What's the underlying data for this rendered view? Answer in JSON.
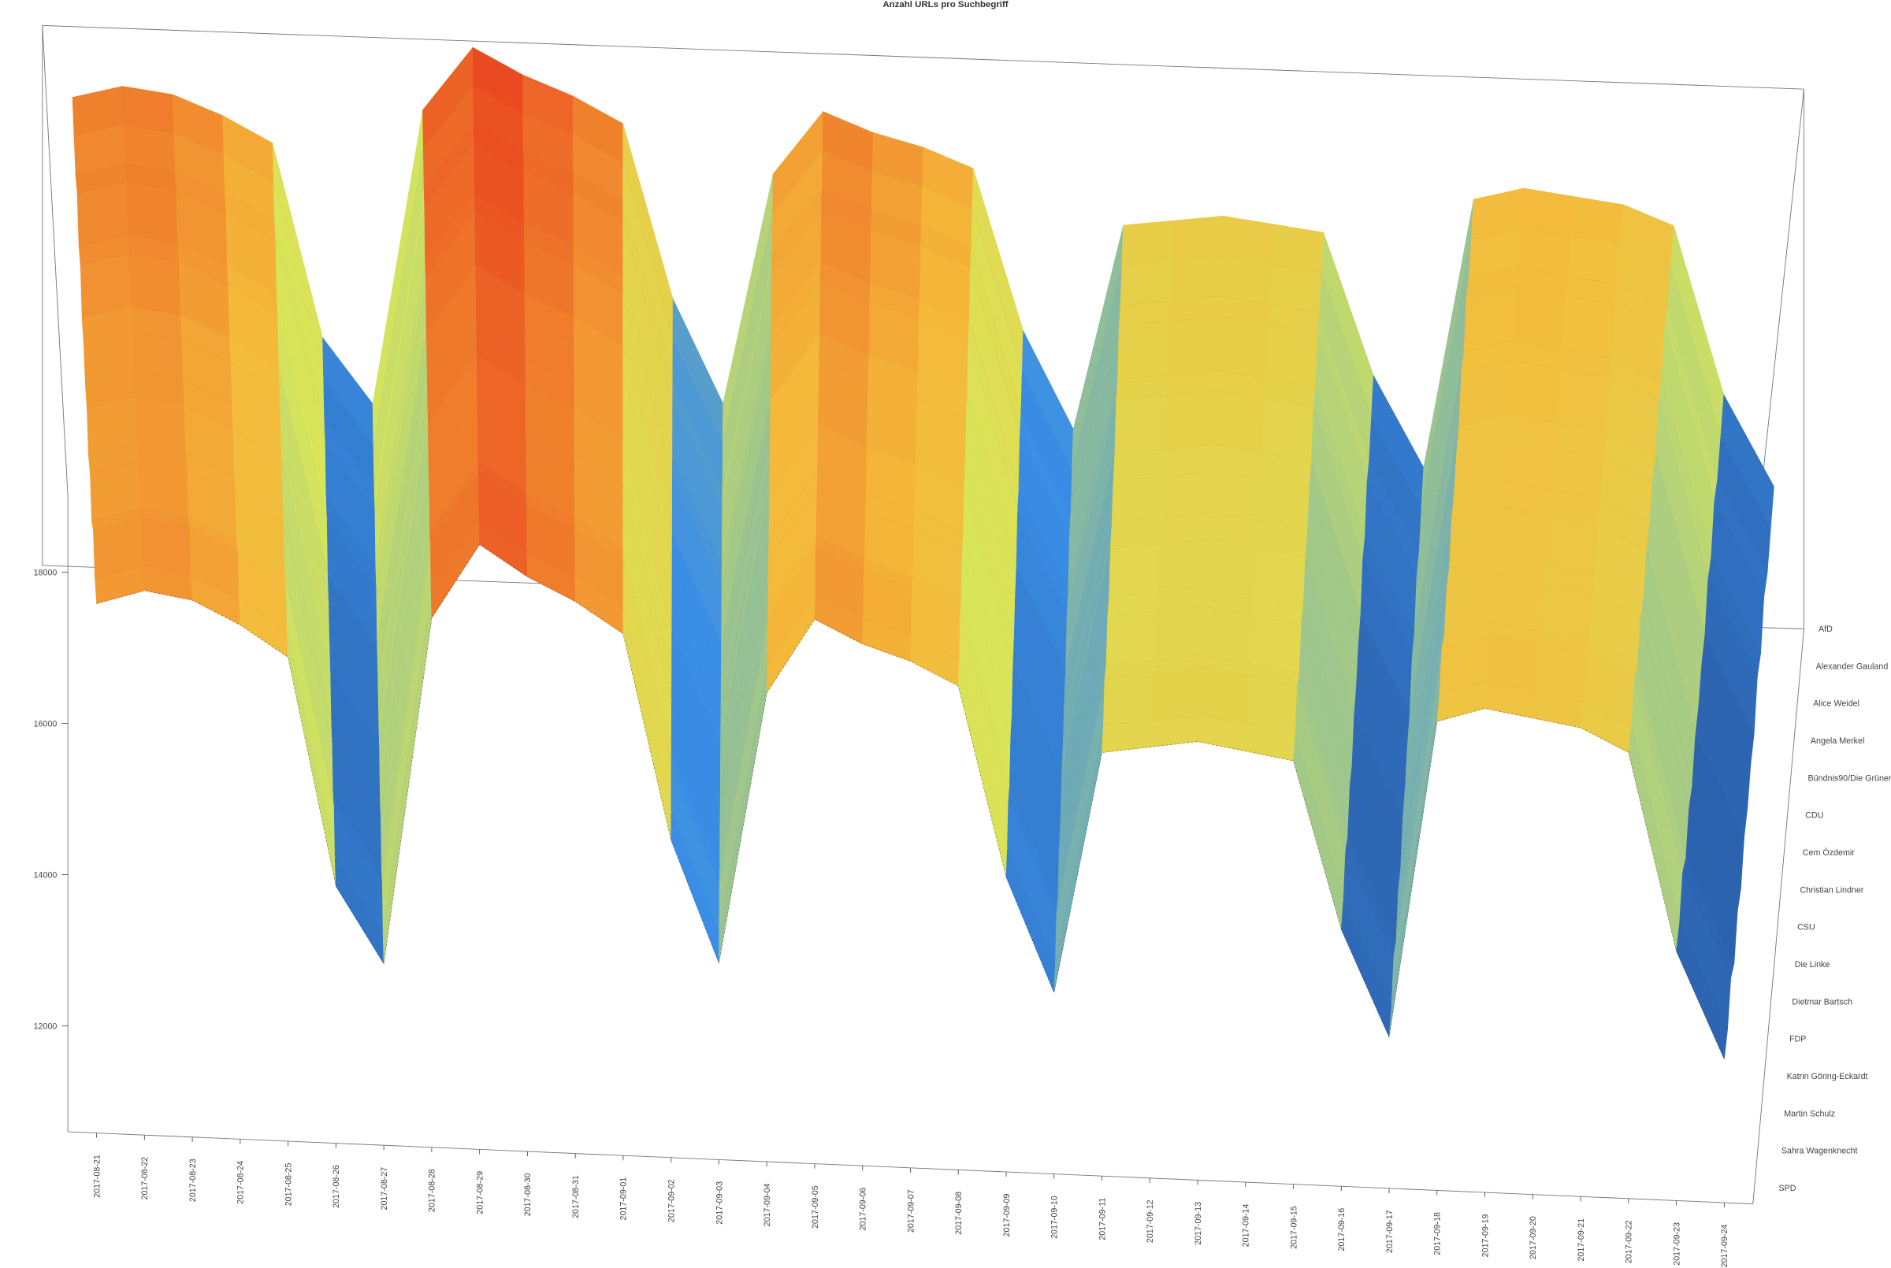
{
  "chart_data": {
    "type": "surface",
    "title": "Anzahl URLs pro Suchbegriff",
    "x": [
      "2017-08-21",
      "2017-08-22",
      "2017-08-23",
      "2017-08-24",
      "2017-08-25",
      "2017-08-26",
      "2017-08-27",
      "2017-08-28",
      "2017-08-29",
      "2017-08-30",
      "2017-08-31",
      "2017-09-01",
      "2017-09-02",
      "2017-09-03",
      "2017-09-04",
      "2017-09-05",
      "2017-09-06",
      "2017-09-07",
      "2017-09-08",
      "2017-09-09",
      "2017-09-10",
      "2017-09-11",
      "2017-09-12",
      "2017-09-13",
      "2017-09-14",
      "2017-09-15",
      "2017-09-16",
      "2017-09-17",
      "2017-09-18",
      "2017-09-19",
      "2017-09-20",
      "2017-09-21",
      "2017-09-22",
      "2017-09-23",
      "2017-09-24"
    ],
    "zlim": [
      10600,
      19000
    ],
    "zticks": [
      12000,
      14000,
      16000,
      18000
    ],
    "colors": [
      "#1f3a7a",
      "#3a8ee6",
      "#d8e65a",
      "#f5b93a",
      "#e8361c"
    ],
    "series": [
      {
        "name": "AfD",
        "values": [
          17900,
          18100,
          18000,
          17700,
          17300,
          14300,
          13300,
          17900,
          18900,
          18500,
          18200,
          17800,
          15100,
          13500,
          17100,
          18100,
          17800,
          17600,
          17300,
          14800,
          13300,
          16500,
          16600,
          16700,
          16600,
          16500,
          14300,
          12900,
          17100,
          17300,
          17200,
          17100,
          16800,
          14200,
          12800
        ]
      },
      {
        "name": "Alexander Gauland",
        "values": [
          17800,
          18000,
          17900,
          17600,
          17200,
          14200,
          13200,
          17800,
          18800,
          18400,
          18100,
          17700,
          15000,
          13400,
          17000,
          18000,
          17700,
          17500,
          17200,
          14700,
          13200,
          16400,
          16500,
          16600,
          16500,
          16400,
          14200,
          12800,
          17000,
          17200,
          17100,
          17000,
          16700,
          14100,
          12700
        ]
      },
      {
        "name": "Alice Weidel",
        "values": [
          17700,
          17900,
          17800,
          17500,
          17100,
          14100,
          13100,
          17700,
          18700,
          18300,
          18000,
          17600,
          14900,
          13300,
          16900,
          17900,
          17600,
          17400,
          17100,
          14600,
          13100,
          16300,
          16400,
          16500,
          16400,
          16300,
          14100,
          12700,
          16900,
          17100,
          17000,
          16900,
          16600,
          14000,
          12600
        ]
      },
      {
        "name": "Angela Merkel",
        "values": [
          17900,
          18100,
          18000,
          17700,
          17300,
          14300,
          13300,
          17900,
          18900,
          18500,
          18200,
          17800,
          15100,
          13500,
          17100,
          18100,
          17800,
          17600,
          17300,
          14800,
          13300,
          16500,
          16600,
          16700,
          16600,
          16500,
          14300,
          12900,
          17100,
          17300,
          17200,
          17100,
          16800,
          14200,
          12800
        ]
      },
      {
        "name": "Bündnis90/Die Grünen",
        "values": [
          17600,
          17800,
          17700,
          17400,
          17000,
          14000,
          13000,
          17600,
          18600,
          18200,
          17900,
          17500,
          14800,
          13200,
          16800,
          17800,
          17500,
          17300,
          17000,
          14500,
          13000,
          16200,
          16300,
          16400,
          16300,
          16200,
          14000,
          12600,
          16800,
          17000,
          16900,
          16800,
          16500,
          13900,
          12500
        ]
      },
      {
        "name": "CDU",
        "values": [
          17800,
          18000,
          17900,
          17600,
          17200,
          14200,
          13200,
          17800,
          18800,
          18400,
          18100,
          17700,
          15000,
          13400,
          17000,
          18000,
          17700,
          17500,
          17200,
          14700,
          13200,
          16400,
          16500,
          16600,
          16500,
          16400,
          14200,
          12800,
          17000,
          17200,
          17100,
          17000,
          16700,
          14100,
          12700
        ]
      },
      {
        "name": "Cem Özdemir",
        "values": [
          17500,
          17700,
          17600,
          17300,
          16900,
          13900,
          12900,
          17500,
          18500,
          18100,
          17800,
          17400,
          14700,
          13100,
          16700,
          17700,
          17400,
          17200,
          16900,
          14400,
          12900,
          16100,
          16200,
          16300,
          16200,
          16100,
          13900,
          12500,
          16700,
          16900,
          16800,
          16700,
          16400,
          13800,
          12400
        ]
      },
      {
        "name": "Christian Lindner",
        "values": [
          17600,
          17800,
          17700,
          17400,
          17000,
          14000,
          13000,
          17600,
          18600,
          18200,
          17900,
          17500,
          14800,
          13200,
          16800,
          17800,
          17500,
          17300,
          17000,
          14500,
          13000,
          16200,
          16300,
          16400,
          16300,
          16200,
          14000,
          12600,
          16800,
          17000,
          16900,
          16800,
          16500,
          13900,
          12500
        ]
      },
      {
        "name": "CSU",
        "values": [
          17500,
          17700,
          17600,
          17300,
          16900,
          13900,
          12900,
          17500,
          18500,
          18100,
          17800,
          17400,
          14700,
          13100,
          16700,
          17700,
          17400,
          17200,
          16900,
          14400,
          12900,
          16100,
          16200,
          16300,
          16200,
          16100,
          13900,
          12500,
          16700,
          16900,
          16800,
          16700,
          16400,
          13800,
          12400
        ]
      },
      {
        "name": "Die Linke",
        "values": [
          17600,
          17800,
          17700,
          17400,
          17000,
          14000,
          13000,
          17600,
          18600,
          18200,
          17900,
          17500,
          14800,
          13200,
          16800,
          17800,
          17500,
          17300,
          17000,
          14500,
          13000,
          16200,
          16300,
          16400,
          16300,
          16200,
          14000,
          12600,
          16800,
          17000,
          16900,
          16800,
          16500,
          13900,
          12500
        ]
      },
      {
        "name": "Dietmar Bartsch",
        "values": [
          17400,
          17600,
          17500,
          17200,
          16800,
          13800,
          12800,
          17400,
          18400,
          18000,
          17700,
          17300,
          14600,
          13000,
          16600,
          17600,
          17300,
          17100,
          16800,
          14300,
          12800,
          16000,
          16100,
          16200,
          16100,
          16000,
          13800,
          12400,
          16600,
          16800,
          16700,
          16600,
          16300,
          13700,
          12300
        ]
      },
      {
        "name": "FDP",
        "values": [
          17600,
          17800,
          17700,
          17400,
          17000,
          14000,
          13000,
          17600,
          18600,
          18200,
          17900,
          17500,
          14800,
          13200,
          16800,
          17800,
          17500,
          17300,
          17000,
          14500,
          13000,
          16200,
          16300,
          16400,
          16300,
          16200,
          14000,
          12600,
          16800,
          17000,
          16900,
          16800,
          16500,
          13900,
          12500
        ]
      },
      {
        "name": "Katrin Göring-Eckardt",
        "values": [
          17400,
          17600,
          17500,
          17200,
          16800,
          13800,
          12800,
          17400,
          18400,
          18000,
          17700,
          17300,
          14600,
          13000,
          16600,
          17600,
          17300,
          17100,
          16800,
          14300,
          12800,
          16000,
          16100,
          16200,
          16100,
          16000,
          13800,
          12400,
          16600,
          16800,
          16700,
          16600,
          16300,
          13700,
          12300
        ]
      },
      {
        "name": "Martin Schulz",
        "values": [
          17700,
          17900,
          17800,
          17500,
          17100,
          14100,
          13100,
          17700,
          18700,
          18300,
          18000,
          17600,
          14900,
          13300,
          16900,
          17900,
          17600,
          17400,
          17100,
          14600,
          13100,
          16300,
          16400,
          16500,
          16400,
          16300,
          14100,
          12700,
          16900,
          17100,
          17000,
          16900,
          16600,
          14000,
          12600
        ]
      },
      {
        "name": "Sahra Wagenknecht",
        "values": [
          17500,
          17700,
          17600,
          17300,
          16900,
          13900,
          12900,
          17500,
          18500,
          18100,
          17800,
          17400,
          14700,
          13100,
          16700,
          17700,
          17400,
          17200,
          16900,
          14400,
          12900,
          16100,
          16200,
          16300,
          16200,
          16100,
          13900,
          12500,
          16700,
          16900,
          16800,
          16700,
          16400,
          13800,
          12400
        ]
      },
      {
        "name": "SPD",
        "values": [
          17600,
          17800,
          17700,
          17400,
          17000,
          14000,
          13000,
          17600,
          18600,
          18200,
          17900,
          17500,
          14800,
          13200,
          16800,
          17800,
          17500,
          17300,
          17000,
          14500,
          13000,
          16200,
          16300,
          16400,
          16300,
          16200,
          14000,
          12600,
          16800,
          17000,
          16900,
          16800,
          16500,
          13900,
          12500
        ]
      }
    ]
  }
}
